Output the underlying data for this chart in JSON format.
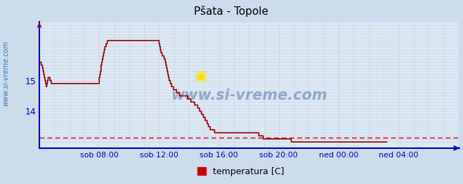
{
  "title": "Pšata - Topole",
  "ylabel_text": "www.si-vreme.com",
  "legend_label": "temperatura [C]",
  "legend_color": "#cc0000",
  "bg_color": "#ccdcec",
  "plot_bg_color": "#dce8f4",
  "line_color": "#990000",
  "dashed_line_color": "#cc0000",
  "dashed_line_y": 13.15,
  "x_tick_labels": [
    "sob 08:00",
    "sob 12:00",
    "sob 16:00",
    "sob 20:00",
    "ned 00:00",
    "ned 04:00"
  ],
  "x_tick_positions": [
    96,
    192,
    288,
    384,
    480,
    576
  ],
  "y_ticks": [
    14,
    15
  ],
  "ylim": [
    12.8,
    16.9
  ],
  "xlim": [
    0,
    672
  ],
  "grid_color_h": "#b8c8d8",
  "grid_color_v": "#e0b0b0",
  "title_color": "#000000",
  "axis_color": "#0000bb",
  "watermark": "www.si-vreme.com",
  "temperature_data": [
    15.6,
    15.6,
    15.6,
    15.5,
    15.5,
    15.4,
    15.3,
    15.2,
    15.1,
    15.0,
    14.9,
    14.8,
    14.9,
    15.0,
    15.1,
    15.1,
    15.1,
    15.0,
    15.0,
    14.9,
    14.9,
    14.9,
    14.9,
    14.9,
    14.9,
    14.9,
    14.9,
    14.9,
    14.9,
    14.9,
    14.9,
    14.9,
    14.9,
    14.9,
    14.9,
    14.9,
    14.9,
    14.9,
    14.9,
    14.9,
    14.9,
    14.9,
    14.9,
    14.9,
    14.9,
    14.9,
    14.9,
    14.9,
    14.9,
    14.9,
    14.9,
    14.9,
    14.9,
    14.9,
    14.9,
    14.9,
    14.9,
    14.9,
    14.9,
    14.9,
    14.9,
    14.9,
    14.9,
    14.9,
    14.9,
    14.9,
    14.9,
    14.9,
    14.9,
    14.9,
    14.9,
    14.9,
    14.9,
    14.9,
    14.9,
    14.9,
    14.9,
    14.9,
    14.9,
    14.9,
    14.9,
    14.9,
    14.9,
    14.9,
    14.9,
    14.9,
    14.9,
    14.9,
    14.9,
    14.9,
    14.9,
    14.9,
    14.9,
    14.9,
    14.9,
    14.9,
    15.1,
    15.2,
    15.3,
    15.5,
    15.6,
    15.7,
    15.8,
    15.9,
    16.0,
    16.1,
    16.1,
    16.2,
    16.2,
    16.3,
    16.3,
    16.3,
    16.3,
    16.3,
    16.3,
    16.3,
    16.3,
    16.3,
    16.3,
    16.3,
    16.3,
    16.3,
    16.3,
    16.3,
    16.3,
    16.3,
    16.3,
    16.3,
    16.3,
    16.3,
    16.3,
    16.3,
    16.3,
    16.3,
    16.3,
    16.3,
    16.3,
    16.3,
    16.3,
    16.3,
    16.3,
    16.3,
    16.3,
    16.3,
    16.3,
    16.3,
    16.3,
    16.3,
    16.3,
    16.3,
    16.3,
    16.3,
    16.3,
    16.3,
    16.3,
    16.3,
    16.3,
    16.3,
    16.3,
    16.3,
    16.3,
    16.3,
    16.3,
    16.3,
    16.3,
    16.3,
    16.3,
    16.3,
    16.3,
    16.3,
    16.3,
    16.3,
    16.3,
    16.3,
    16.3,
    16.3,
    16.3,
    16.3,
    16.3,
    16.3,
    16.3,
    16.3,
    16.3,
    16.3,
    16.3,
    16.3,
    16.3,
    16.3,
    16.3,
    16.3,
    16.3,
    16.3,
    16.2,
    16.1,
    16.0,
    15.9,
    15.9,
    15.8,
    15.8,
    15.8,
    15.7,
    15.7,
    15.6,
    15.5,
    15.4,
    15.3,
    15.2,
    15.1,
    15.0,
    15.0,
    14.9,
    14.9,
    14.8,
    14.8,
    14.8,
    14.7,
    14.7,
    14.7,
    14.7,
    14.7,
    14.6,
    14.6,
    14.6,
    14.6,
    14.6,
    14.5,
    14.5,
    14.5,
    14.5,
    14.5,
    14.5,
    14.5,
    14.5,
    14.5,
    14.5,
    14.5,
    14.5,
    14.5,
    14.4,
    14.4,
    14.4,
    14.4,
    14.4,
    14.3,
    14.3,
    14.3,
    14.3,
    14.3,
    14.3,
    14.2,
    14.2,
    14.2,
    14.2,
    14.2,
    14.1,
    14.1,
    14.1,
    14.0,
    14.0,
    14.0,
    13.9,
    13.9,
    13.9,
    13.8,
    13.8,
    13.8,
    13.7,
    13.7,
    13.7,
    13.6,
    13.6,
    13.5,
    13.5,
    13.5,
    13.4,
    13.4,
    13.4,
    13.4,
    13.4,
    13.4,
    13.4,
    13.3,
    13.3,
    13.3,
    13.3,
    13.3,
    13.3,
    13.3,
    13.3,
    13.3,
    13.3,
    13.3,
    13.3,
    13.3,
    13.3,
    13.3,
    13.3,
    13.3,
    13.3,
    13.3,
    13.3,
    13.3,
    13.3,
    13.3,
    13.3,
    13.3,
    13.3,
    13.3,
    13.3,
    13.3,
    13.3,
    13.3,
    13.3,
    13.3,
    13.3,
    13.3,
    13.3,
    13.3,
    13.3,
    13.3,
    13.3,
    13.3,
    13.3,
    13.3,
    13.3,
    13.3,
    13.3,
    13.3,
    13.3,
    13.3,
    13.3,
    13.3,
    13.3,
    13.3,
    13.3,
    13.3,
    13.3,
    13.3,
    13.3,
    13.3,
    13.3,
    13.3,
    13.3,
    13.3,
    13.3,
    13.3,
    13.3,
    13.3,
    13.3,
    13.3,
    13.3,
    13.3,
    13.2,
    13.2,
    13.2,
    13.2,
    13.2,
    13.2,
    13.2,
    13.1,
    13.1,
    13.1,
    13.1,
    13.1,
    13.1,
    13.1,
    13.1,
    13.1,
    13.1,
    13.1,
    13.1,
    13.1,
    13.1,
    13.1,
    13.1,
    13.1,
    13.1,
    13.1,
    13.1,
    13.1,
    13.1,
    13.1,
    13.1,
    13.1,
    13.1,
    13.1,
    13.1,
    13.1,
    13.1,
    13.1,
    13.1,
    13.1,
    13.1,
    13.1,
    13.1,
    13.1,
    13.1,
    13.1,
    13.1,
    13.1,
    13.1,
    13.1,
    13.1,
    13.1,
    13.0,
    13.0,
    13.0,
    13.0,
    13.0,
    13.0,
    13.0,
    13.0,
    13.0,
    13.0,
    13.0,
    13.0,
    13.0,
    13.0,
    13.0,
    13.0,
    13.0,
    13.0,
    13.0,
    13.0,
    13.0,
    13.0,
    13.0,
    13.0,
    13.0,
    13.0,
    13.0,
    13.0,
    13.0,
    13.0,
    13.0,
    13.0,
    13.0,
    13.0,
    13.0,
    13.0,
    13.0,
    13.0,
    13.0,
    13.0,
    13.0,
    13.0,
    13.0,
    13.0,
    13.0,
    13.0,
    13.0,
    13.0,
    13.0,
    13.0,
    13.0,
    13.0,
    13.0,
    13.0,
    13.0,
    13.0,
    13.0,
    13.0,
    13.0,
    13.0,
    13.0,
    13.0,
    13.0,
    13.0,
    13.0,
    13.0,
    13.0,
    13.0,
    13.0,
    13.0,
    13.0,
    13.0,
    13.0,
    13.0,
    13.0,
    13.0,
    13.0,
    13.0,
    13.0,
    13.0,
    13.0,
    13.0,
    13.0,
    13.0,
    13.0,
    13.0,
    13.0,
    13.0,
    13.0,
    13.0,
    13.0,
    13.0,
    13.0,
    13.0,
    13.0,
    13.0,
    13.0,
    13.0,
    13.0,
    13.0,
    13.0,
    13.0,
    13.0,
    13.0,
    13.0,
    13.0,
    13.0,
    13.0,
    13.0,
    13.0,
    13.0,
    13.0,
    13.0,
    13.0,
    13.0,
    13.0,
    13.0,
    13.0,
    13.0,
    13.0,
    13.0,
    13.0,
    13.0,
    13.0,
    13.0,
    13.0,
    13.0,
    13.0,
    13.0,
    13.0,
    13.0,
    13.0,
    13.0,
    13.0,
    13.0,
    13.0,
    13.0,
    13.0,
    13.0,
    13.0,
    13.0,
    13.0,
    13.0,
    13.0,
    13.0,
    13.0,
    13.0,
    13.0,
    13.0,
    13.0,
    13.0,
    13.0,
    13.0,
    13.0
  ]
}
